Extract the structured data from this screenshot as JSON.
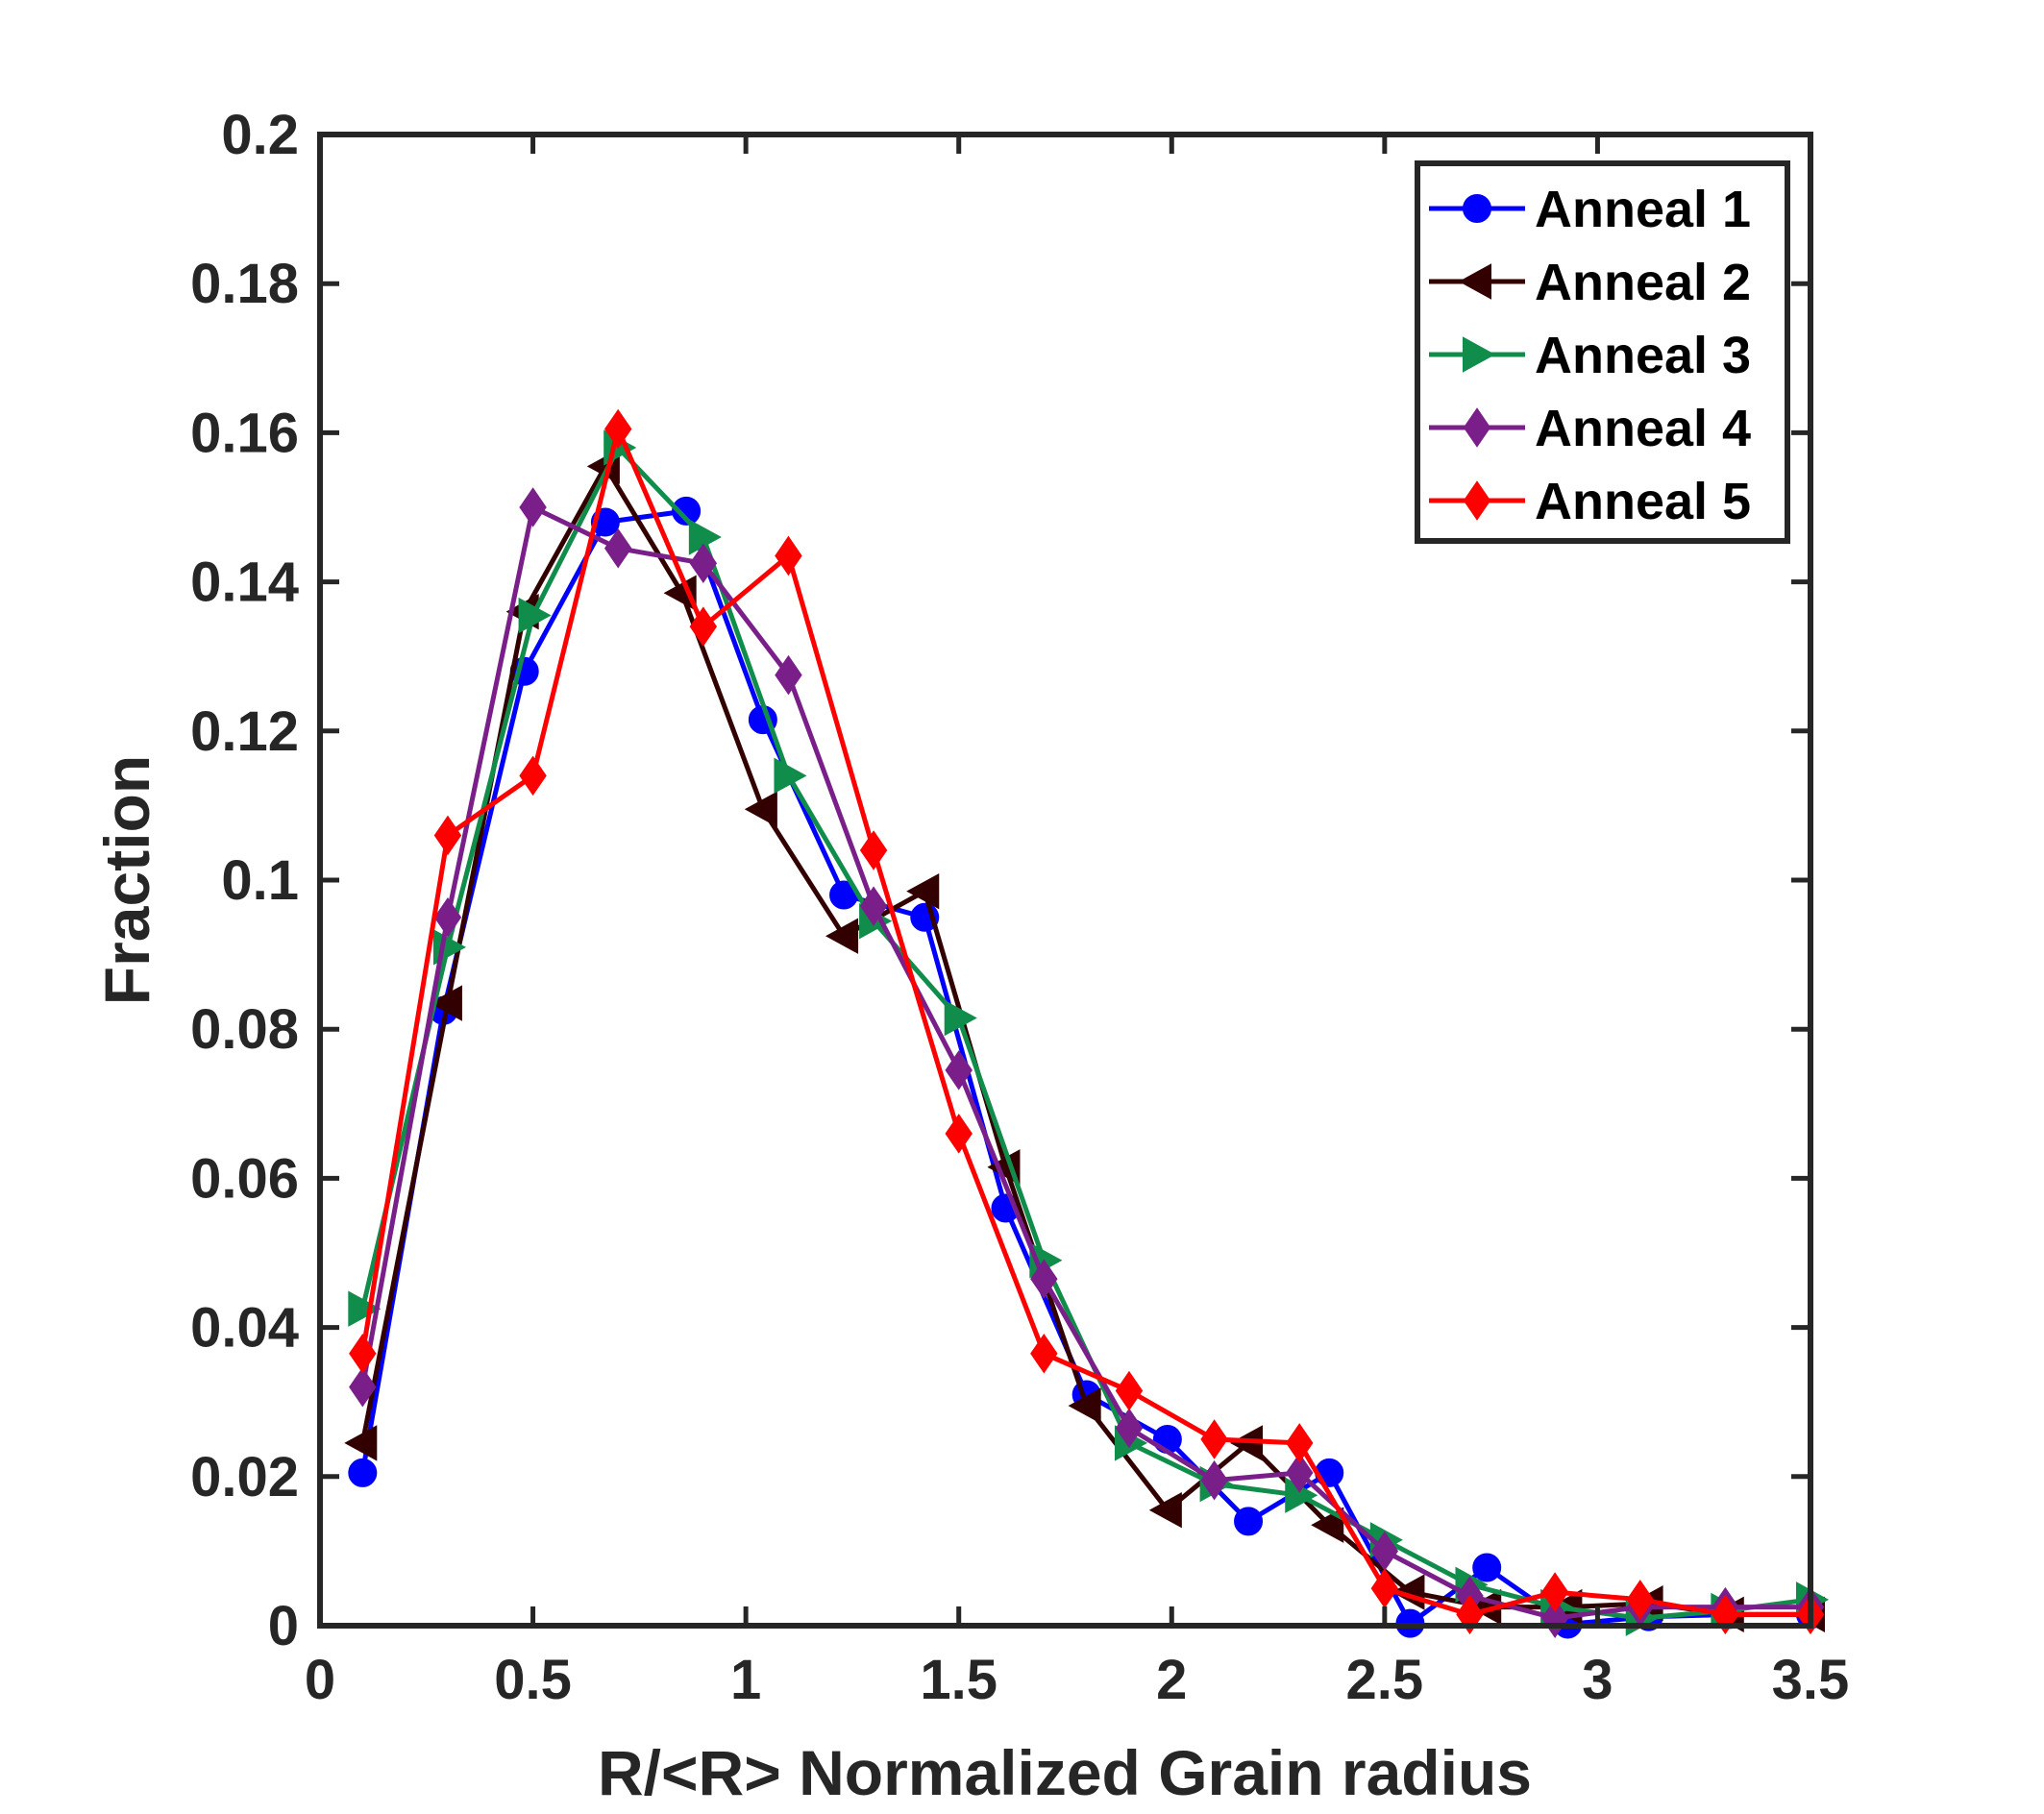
{
  "chart_data": {
    "type": "line",
    "title": "",
    "xlabel": "R/<R> Normalized Grain radius",
    "ylabel": "Fraction",
    "xlim": [
      0,
      3.5
    ],
    "ylim": [
      0,
      0.2
    ],
    "xticks": [
      0,
      0.5,
      1,
      1.5,
      2,
      2.5,
      3,
      3.5
    ],
    "xtick_labels": [
      "0",
      "0.5",
      "1",
      "1.5",
      "2",
      "2.5",
      "3",
      "3.5"
    ],
    "yticks": [
      0,
      0.02,
      0.04,
      0.06,
      0.08,
      0.1,
      0.12,
      0.14,
      0.16,
      0.18,
      0.2
    ],
    "ytick_labels": [
      "0",
      "0.02",
      "0.04",
      "0.06",
      "0.08",
      "0.1",
      "0.12",
      "0.14",
      "0.16",
      "0.18",
      "0.2"
    ],
    "grid": false,
    "legend_position": "top-right",
    "series": [
      {
        "name": "Anneal 1",
        "color": "#0000ff",
        "marker": "circle",
        "x": [
          0.1,
          0.29,
          0.48,
          0.67,
          0.86,
          1.04,
          1.23,
          1.42,
          1.61,
          1.8,
          1.99,
          2.18,
          2.37,
          2.56,
          2.74,
          2.93,
          3.12,
          3.31,
          3.5
        ],
        "y": [
          0.0205,
          0.0825,
          0.128,
          0.148,
          0.1495,
          0.1215,
          0.098,
          0.095,
          0.056,
          0.031,
          0.025,
          0.014,
          0.0205,
          0.0003,
          0.0078,
          0.0002,
          0.0012,
          0.0015,
          0.0015
        ]
      },
      {
        "name": "Anneal 2",
        "color": "#330000",
        "marker": "triangle-left",
        "x": [
          0.1,
          0.3,
          0.48,
          0.67,
          0.85,
          1.04,
          1.23,
          1.42,
          1.61,
          1.8,
          1.99,
          2.18,
          2.37,
          2.56,
          2.74,
          2.93,
          3.12,
          3.31,
          3.5
        ],
        "y": [
          0.0245,
          0.0835,
          0.136,
          0.1555,
          0.1385,
          0.1095,
          0.0925,
          0.0985,
          0.0615,
          0.0295,
          0.0155,
          0.0245,
          0.0135,
          0.0045,
          0.0025,
          0.0025,
          0.003,
          0.0015,
          0.0015
        ]
      },
      {
        "name": "Anneal 3",
        "color": "#118d4b",
        "marker": "triangle-right",
        "x": [
          0.1,
          0.3,
          0.5,
          0.7,
          0.9,
          1.1,
          1.3,
          1.5,
          1.7,
          1.9,
          2.1,
          2.3,
          2.5,
          2.7,
          2.9,
          3.1,
          3.3,
          3.5
        ],
        "y": [
          0.0425,
          0.091,
          0.1355,
          0.158,
          0.146,
          0.114,
          0.0945,
          0.0815,
          0.049,
          0.0245,
          0.019,
          0.0175,
          0.0115,
          0.0055,
          0.0025,
          0.001,
          0.002,
          0.0035
        ]
      },
      {
        "name": "Anneal 4",
        "color": "#7a1f8a",
        "marker": "diamond",
        "x": [
          0.1,
          0.3,
          0.5,
          0.7,
          0.9,
          1.1,
          1.3,
          1.5,
          1.7,
          1.9,
          2.1,
          2.3,
          2.5,
          2.7,
          2.9,
          3.1,
          3.3,
          3.5
        ],
        "y": [
          0.032,
          0.095,
          0.15,
          0.1445,
          0.1425,
          0.1275,
          0.0965,
          0.0745,
          0.0465,
          0.0265,
          0.0195,
          0.0205,
          0.01,
          0.004,
          0.001,
          0.0025,
          0.0025,
          0.0025
        ]
      },
      {
        "name": "Anneal 5",
        "color": "#ff0000",
        "marker": "diamond",
        "x": [
          0.1,
          0.3,
          0.5,
          0.7,
          0.9,
          1.1,
          1.3,
          1.5,
          1.7,
          1.9,
          2.1,
          2.3,
          2.5,
          2.7,
          2.9,
          3.1,
          3.3,
          3.5
        ],
        "y": [
          0.0365,
          0.106,
          0.114,
          0.1605,
          0.134,
          0.1435,
          0.104,
          0.066,
          0.0365,
          0.0315,
          0.025,
          0.0245,
          0.005,
          0.0015,
          0.0045,
          0.0035,
          0.0015,
          0.0015
        ]
      }
    ]
  }
}
